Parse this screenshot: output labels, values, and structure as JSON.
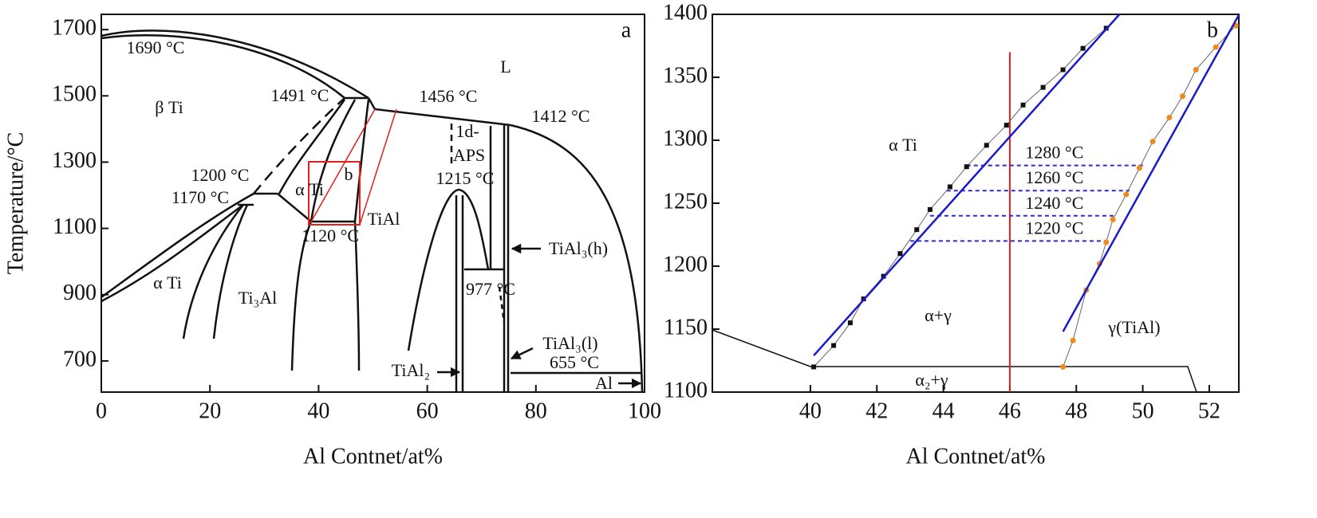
{
  "chart_data": [
    {
      "type": "phase-diagram",
      "panel_label": "a",
      "x_label": "Al Contnet/at%",
      "y_label": "Temperature/°C",
      "xlim": [
        0,
        100
      ],
      "ylim": [
        606,
        1746
      ],
      "xticks": [
        0,
        20,
        40,
        60,
        80,
        100
      ],
      "yticks": [
        700,
        900,
        1100,
        1300,
        1500,
        1700
      ],
      "annotations": [
        "1690 °C",
        "β Ti",
        "1491 °C",
        "1456 °C",
        "1412 °C",
        "L",
        "1d-",
        "APS",
        "1215 °C",
        "1200 °C",
        "1170 °C",
        "α Ti",
        "b",
        "TiAl",
        "1120 °C",
        "TiAl₃(h)",
        "α Ti",
        "Ti₃Al",
        "977 °C",
        "TiAl₃(l)",
        "655 °C",
        "TiAl₂",
        "Al"
      ]
    },
    {
      "type": "scatter",
      "panel_label": "b",
      "x_label": "Al Contnet/at%",
      "xlim": [
        37.05,
        52.89
      ],
      "ylim": [
        1100,
        1400
      ],
      "xticks": [
        40,
        42,
        44,
        46,
        48,
        50,
        52
      ],
      "yticks": [
        1100,
        1150,
        1200,
        1250,
        1300,
        1350,
        1400
      ],
      "series": [
        {
          "color": "#111111",
          "marker": "square",
          "x": [
            40.1,
            40.7,
            41.2,
            41.6,
            42.2,
            42.7,
            43.2,
            43.6,
            44.2,
            44.7,
            45.3,
            45.9,
            46.4,
            47.0,
            47.6,
            48.2,
            48.9
          ],
          "values": [
            1120,
            1137,
            1155,
            1174,
            1192,
            1210,
            1229,
            1245,
            1263,
            1279,
            1296,
            1312,
            1328,
            1342,
            1356,
            1373,
            1389
          ]
        },
        {
          "color": "#f08a1c",
          "marker": "circle",
          "x": [
            47.6,
            47.9,
            48.3,
            48.7,
            48.9,
            49.1,
            49.5,
            49.9,
            50.3,
            50.8,
            51.2,
            51.6,
            52.2,
            52.8
          ],
          "values": [
            1120,
            1141,
            1181,
            1202,
            1219,
            1237,
            1257,
            1278,
            1299,
            1318,
            1335,
            1356,
            1374,
            1391
          ]
        },
        {
          "color": "#1a1acc",
          "marker": "none",
          "x": [
            40.1,
            49.3
          ],
          "values": [
            1129,
            1400
          ]
        },
        {
          "color": "#1a1acc",
          "marker": "none",
          "x": [
            47.6,
            52.9
          ],
          "values": [
            1148,
            1400
          ]
        }
      ],
      "isotherms": [
        {
          "value": 1280,
          "label": "1280 °C",
          "x": [
            44.7,
            50.1
          ]
        },
        {
          "value": 1260,
          "label": "1260 °C",
          "x": [
            44.1,
            49.6
          ]
        },
        {
          "value": 1240,
          "label": "1240 °C",
          "x": [
            43.6,
            49.2
          ]
        },
        {
          "value": 1220,
          "label": "1220 °C",
          "x": [
            43.0,
            48.9
          ]
        }
      ],
      "reference_x": {
        "value": 46,
        "color": "#e0201c",
        "ylim": [
          1100,
          1370
        ]
      },
      "annotations": [
        "α Ti",
        "α+γ",
        "γ(TiAl)",
        "α₂+γ"
      ]
    }
  ]
}
